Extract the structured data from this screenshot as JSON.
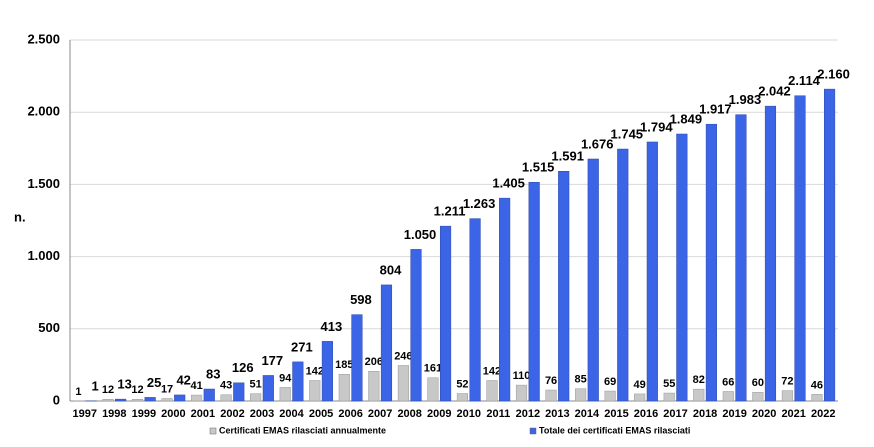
{
  "chart_data": {
    "type": "bar",
    "y_label": "n.",
    "categories": [
      "1997",
      "1998",
      "1999",
      "2000",
      "2001",
      "2002",
      "2003",
      "2004",
      "2005",
      "2006",
      "2007",
      "2008",
      "2009",
      "2010",
      "2011",
      "2012",
      "2013",
      "2014",
      "2015",
      "2016",
      "2017",
      "2018",
      "2019",
      "2020",
      "2021",
      "2022"
    ],
    "series": [
      {
        "name": "Certificati EMAS rilasciati annualmente",
        "color": "#c8c8c8",
        "values": [
          1,
          12,
          12,
          17,
          41,
          43,
          51,
          94,
          142,
          185,
          206,
          246,
          161,
          52,
          142,
          110,
          76,
          85,
          69,
          49,
          55,
          82,
          66,
          60,
          72,
          46
        ]
      },
      {
        "name": "Totale dei certificati EMAS rilasciati",
        "color": "#3c64e6",
        "values": [
          1,
          13,
          25,
          42,
          83,
          126,
          177,
          271,
          413,
          598,
          804,
          1050,
          1211,
          1263,
          1405,
          1515,
          1591,
          1676,
          1745,
          1794,
          1849,
          1917,
          1983,
          2042,
          2114,
          2160
        ],
        "value_labels": [
          "1",
          "13",
          "25",
          "42",
          "83",
          "126",
          "177",
          "271",
          "413",
          "598",
          "804",
          "1.050",
          "1.211",
          "1.263",
          "1.405",
          "1.515",
          "1.591",
          "1.676",
          "1.745",
          "1.794",
          "1.849",
          "1.917",
          "1.983",
          "2.042",
          "2.114",
          "2.160"
        ]
      }
    ],
    "ylim": [
      0,
      2500
    ],
    "yticks": [
      0,
      500,
      {
        "value": 1000,
        "label": "1.000"
      },
      {
        "value": 1500,
        "label": "1.500"
      },
      {
        "value": 2000,
        "label": "2.000"
      },
      {
        "value": 2500,
        "label": "2.500"
      }
    ],
    "grid": true
  }
}
